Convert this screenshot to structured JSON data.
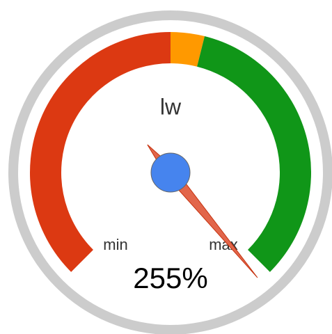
{
  "chart_data": {
    "type": "gauge",
    "title": "lw",
    "value": 255,
    "value_label": "255%",
    "min_label": "min",
    "max_label": "max",
    "range": [
      0,
      250
    ],
    "bands": [
      {
        "from": 0,
        "to": 125,
        "color": "#dc3912"
      },
      {
        "from": 125,
        "to": 138,
        "color": "#ff9900"
      },
      {
        "from": 138,
        "to": 250,
        "color": "#109618"
      }
    ],
    "needle_color": "#e2664b",
    "hub_color": "#4684ee"
  }
}
